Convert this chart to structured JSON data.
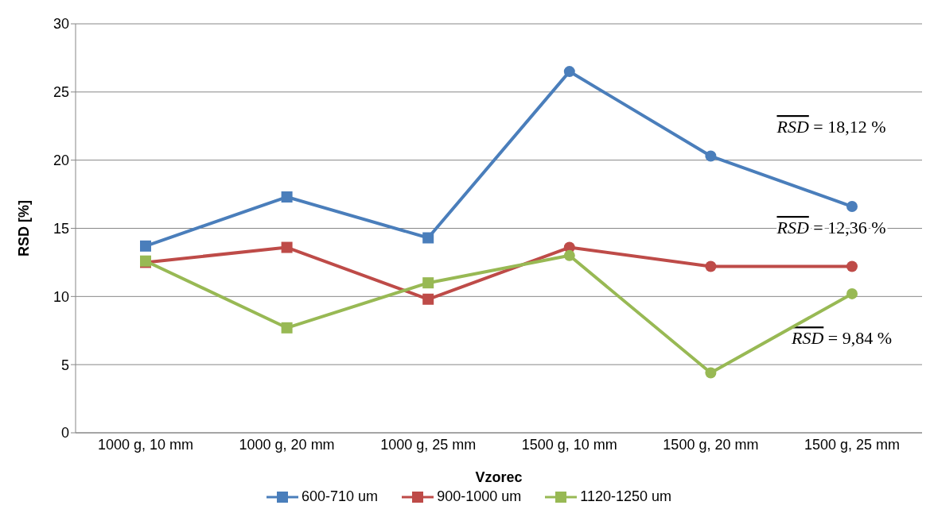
{
  "chart_data": {
    "type": "line",
    "xlabel": "Vzorec",
    "ylabel": "RSD [%]",
    "categories": [
      "1000 g, 10 mm",
      "1000 g, 20 mm",
      "1000 g, 25 mm",
      "1500 g, 10 mm",
      "1500 g, 20 mm",
      "1500 g, 25 mm"
    ],
    "series": [
      {
        "name": "600-710 um",
        "color": "#4a7ebb",
        "values": [
          13.7,
          17.3,
          14.3,
          26.5,
          20.3,
          16.6
        ]
      },
      {
        "name": "900-1000 um",
        "color": "#be4b48",
        "values": [
          12.5,
          13.6,
          9.8,
          13.6,
          12.2,
          12.2
        ]
      },
      {
        "name": "1120-1250 um",
        "color": "#98b954",
        "values": [
          12.6,
          7.7,
          11.0,
          13.0,
          4.4,
          10.2
        ]
      }
    ],
    "marker": [
      "square",
      "square",
      "square",
      "circle",
      "circle",
      "circle"
    ],
    "ylim": [
      0,
      30
    ],
    "yticks": [
      0,
      5,
      10,
      15,
      20,
      25,
      30
    ],
    "grid": "y",
    "legend": "bottom",
    "line_style": "solid",
    "annotations": [
      "RSD = 18,12 %",
      "RSD = 12,36 %",
      "RSD = 9,84 %"
    ]
  }
}
